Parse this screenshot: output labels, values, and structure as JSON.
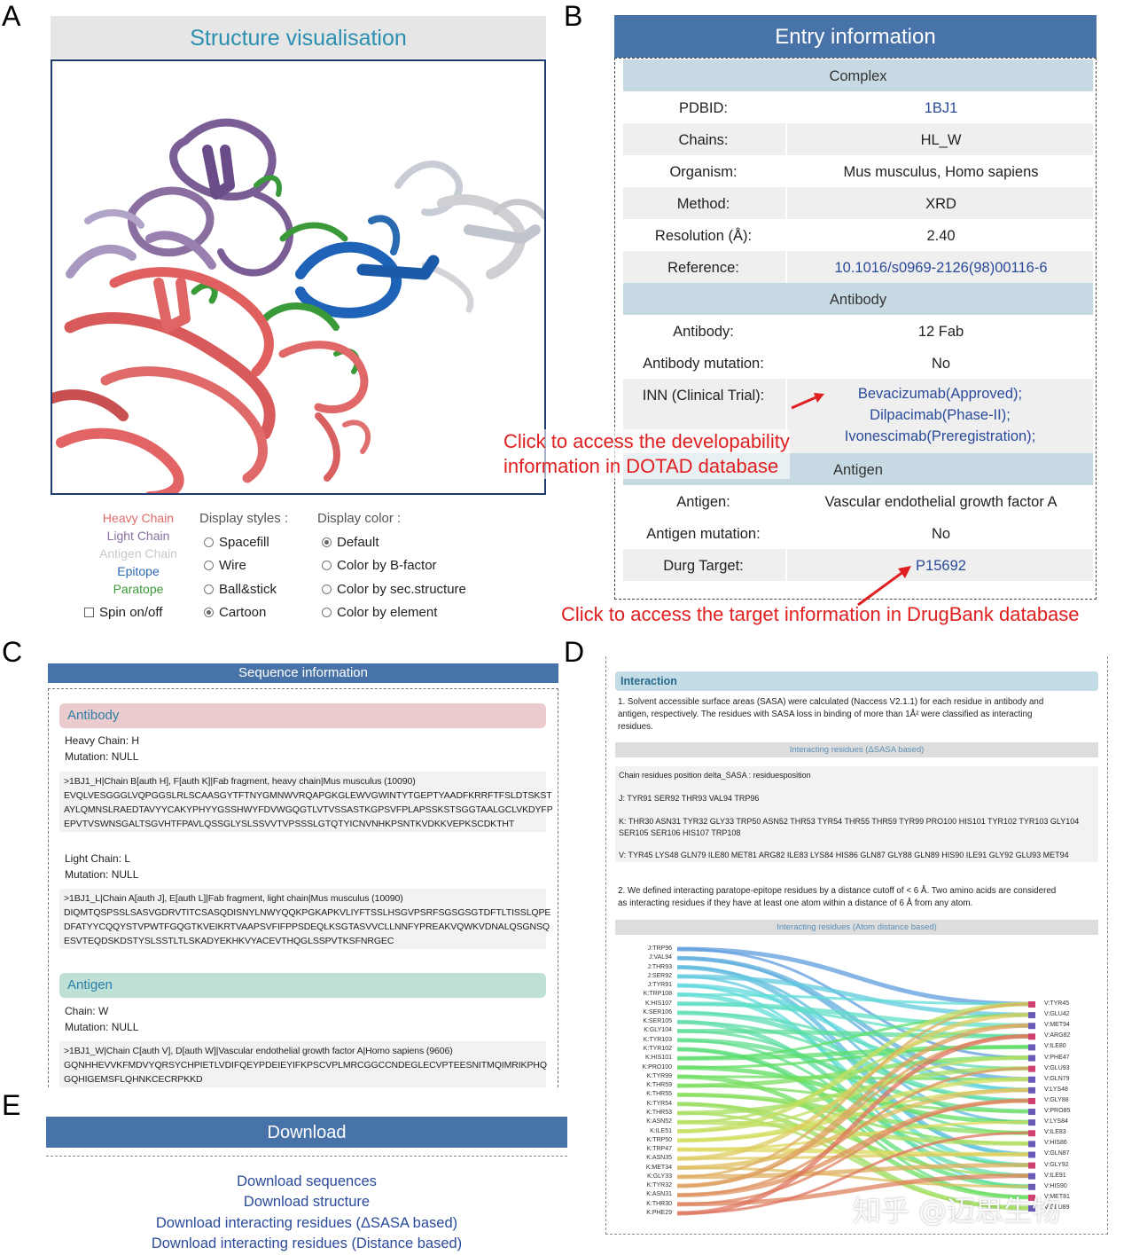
{
  "panels": {
    "a": "A",
    "b": "B",
    "c": "C",
    "d": "D",
    "e": "E"
  },
  "structure": {
    "title": "Structure visualisation",
    "legend": [
      {
        "label": "Heavy Chain",
        "color": "#e07070"
      },
      {
        "label": "Light Chain",
        "color": "#8a6fa0"
      },
      {
        "label": "Antigen Chain",
        "color": "#c8c8c8"
      },
      {
        "label": "Epitope",
        "color": "#2a6ab0"
      },
      {
        "label": "Paratope",
        "color": "#3a9a3a"
      }
    ],
    "spin_label": "Spin on/off",
    "display_styles_label": "Display styles :",
    "display_styles": [
      "Spacefill",
      "Wire",
      "Ball&stick",
      "Cartoon"
    ],
    "display_styles_selected": "Cartoon",
    "display_color_label": "Display color :",
    "display_colors": [
      "Default",
      "Color by B-factor",
      "Color by sec.structure",
      "Color by element"
    ],
    "display_color_selected": "Default"
  },
  "entry": {
    "title": "Entry information",
    "complex_label": "Complex",
    "antibody_section_label": "Antibody",
    "antigen_section_label": "Antigen",
    "pdbid_k": "PDBID:",
    "pdbid_v": "1BJ1",
    "chains_k": "Chains:",
    "chains_v": "HL_W",
    "organism_k": "Organism:",
    "organism_v": "Mus musculus, Homo sapiens",
    "method_k": "Method:",
    "method_v": "XRD",
    "resolution_k": "Resolution (Å):",
    "resolution_v": "2.40",
    "reference_k": "Reference:",
    "reference_v": "10.1016/s0969-2126(98)00116-6",
    "antibody_k": "Antibody:",
    "antibody_v": "12 Fab",
    "ab_mut_k": "Antibody mutation:",
    "ab_mut_v": "No",
    "inn_k": "INN (Clinical Trial):",
    "inn_v": [
      "Bevacizumab(Approved);",
      "Dilpacimab(Phase-II);",
      "Ivonescimab(Preregistration);"
    ],
    "antigen_k": "Antigen:",
    "antigen_v": "Vascular endothelial growth factor A",
    "ag_mut_k": "Antigen mutation:",
    "ag_mut_v": "No",
    "target_k": "Durg Target:",
    "target_v": "P15692",
    "note_dotad_1": "Click to access the developability",
    "note_dotad_2": "information in DOTAD database",
    "note_drugbank": "Click to access the target information in DrugBank database"
  },
  "sequence": {
    "title": "Sequence information",
    "antibody_label": "Antibody",
    "heavy_chain": "Heavy Chain: H",
    "heavy_mut": "Mutation: NULL",
    "heavy_lines": [
      ">1BJ1_H|Chain B[auth H], F[auth K]|Fab fragment, heavy chain|Mus musculus (10090)",
      "EVQLVESGGGLVQPGGSLRLSCAASGYTFTNYGMNWVRQAPGKGLEWVGWINTYTGEPTYAADFKRRFTFSLDTSKST",
      "AYLQMNSLRAEDTAVYYCAKYPHYYGSSHWYFDVWGQGTLVTVSSASTKGPSVFPLAPSSKSTSGGTAALGCLVKDYFP",
      "EPVTVSWNSGALTSGVHTFPAVLQSSGLYSLSSVVTVPSSSLGTQTYICNVNHKPSNTKVDKKVEPKSCDKTHT"
    ],
    "light_chain": "Light Chain: L",
    "light_mut": "Mutation: NULL",
    "light_lines": [
      ">1BJ1_L|Chain A[auth J], E[auth L]|Fab fragment, light chain|Mus musculus (10090)",
      "DIQMTQSPSSLSASVGDRVTITCSASQDISNYLNWYQQKPGKAPKVLIYFTSSLHSGVPSRFSGSGSGTDFTLTISSLQPE",
      "DFATYYCQQYSTVPWTFGQGTKVEIKRTVAAPSVFIFPPSDEQLKSGTASVVCLLNNFYPREAKVQWKVDNALQSGNSQ",
      "ESVTEQDSKDSTYSLSSTLTLSKADYEKHKVYACEVTHQGLSSPVTKSFNRGEC"
    ],
    "antigen_label": "Antigen",
    "antigen_chain": "Chain: W",
    "antigen_mut": "Mutation: NULL",
    "antigen_lines": [
      ">1BJ1_W|Chain C[auth V], D[auth W]|Vascular endothelial growth factor A|Homo sapiens (9606)",
      "GQNHHEVVKFMDVYQRSYCHPIETLVDIFQEYPDEIEYIFKPSCVPLMRCGGCCNDEGLECVPTEESNITMQIMRIKPHQ",
      "GQHIGEMSFLQHNKCECRPKKD"
    ]
  },
  "interaction": {
    "header": "Interaction",
    "p1_a": "1.  Solvent accessible surface areas (SASA) were calculated (Naccess V2.1.1) for each residue in antibody and",
    "p1_b": "antigen, respectively. The residues with SASA loss in binding of more than 1Å² were classified as interacting",
    "p1_c": "residues.",
    "bar1": "Interacting residues (ΔSASA based)",
    "res_title": "Chain residues position delta_SASA : residuesposition",
    "res_j": "J: TYR91 SER92 THR93 VAL94 TRP96",
    "res_k": "K: THR30 ASN31 TYR32 GLY33 TRP50 ASN52 THR53 TYR54 THR55 THR59 TYR99 PRO100 HIS101 TYR102 TYR103 GLY104 SER105 SER106 HIS107 TRP108",
    "res_v": "V: TYR45 LYS48 GLN79 ILE80 MET81 ARG82 ILE83 LYS84 HIS86 GLN87 GLY88 GLN89 HIS90 ILE91 GLY92 GLU93 MET94",
    "p2_a": "2.  We defined interacting paratope-epitope residues by a distance cutoff of < 6 Å. Two amino acids are considered",
    "p2_b": "as interacting residues if they have at least one atom within a distance of 6 Å from any atom.",
    "bar2": "Interacting residues (Atom distance based)",
    "left_nodes": [
      "J:TRP96",
      "J:VAL94",
      "J:THR93",
      "J:SER92",
      "J:TYR91",
      "K:TRP108",
      "K:HIS107",
      "K:SER106",
      "K:SER105",
      "K:GLY104",
      "K:TYR103",
      "K:TYR102",
      "K:HIS101",
      "K:PRO100",
      "K:TYR99",
      "K:THR59",
      "K:THR55",
      "K:TYR54",
      "K:THR53",
      "K:ASN52",
      "K:ILE51",
      "K:TRP50",
      "K:TRP47",
      "K:ASN35",
      "K:MET34",
      "K:GLY33",
      "K:TYR32",
      "K:ASN31",
      "K:THR30",
      "K:PHE29"
    ],
    "right_nodes": [
      "V:TYR45",
      "V:GLU42",
      "V:MET94",
      "V:ARG82",
      "V:ILE80",
      "V:PHE47",
      "V:GLU93",
      "V:GLN79",
      "V:LYS48",
      "V:GLY88",
      "V:PRO85",
      "V:LYS84",
      "V:ILE83",
      "V:HIS86",
      "V:GLN87",
      "V:GLY92",
      "V:ILE91",
      "V:HIS90",
      "V:MET81",
      "V:GLU89"
    ]
  },
  "download": {
    "title": "Download",
    "links": [
      "Download sequences",
      "Download structure",
      "Download interacting residues (ΔSASA based)",
      "Download interacting residues (Distance based)"
    ]
  },
  "watermark": "知乎 @迈思生物"
}
